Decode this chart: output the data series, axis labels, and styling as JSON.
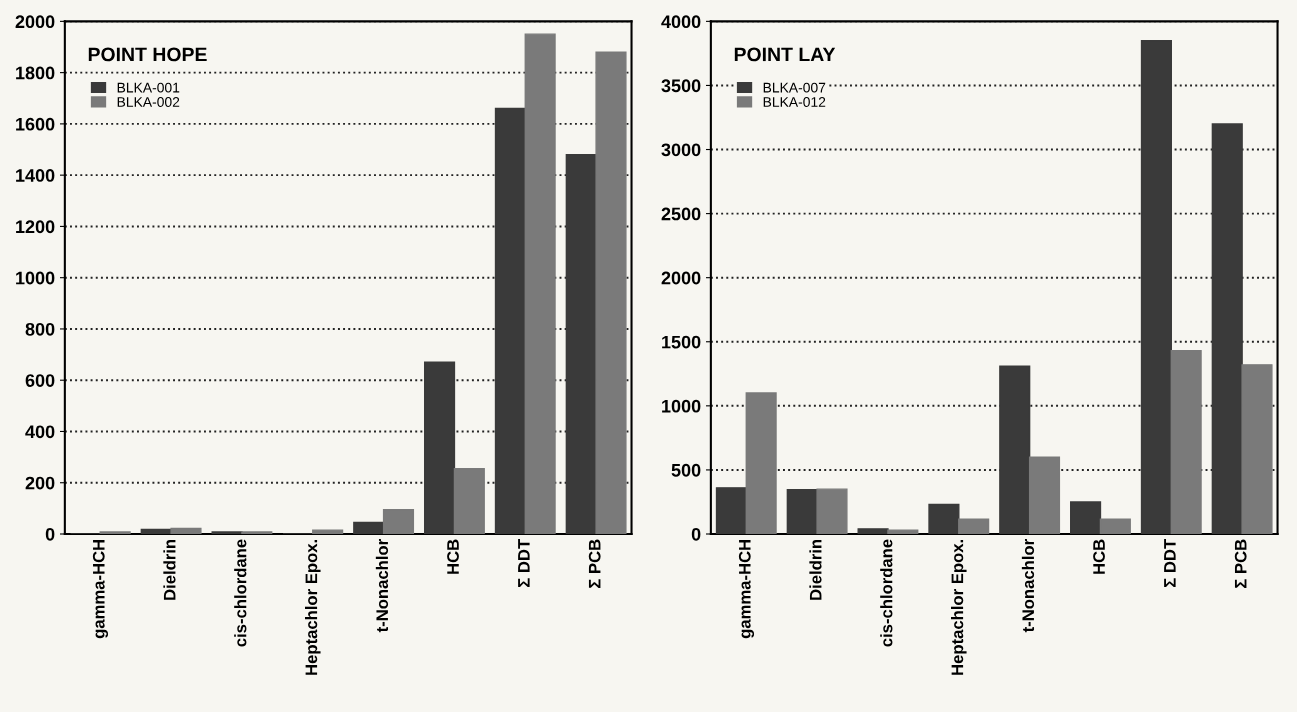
{
  "chart_data": [
    {
      "type": "bar",
      "title": "POINT HOPE",
      "categories": [
        "gamma-HCH",
        "Dieldrin",
        "cis-chlordane",
        "Heptachlor Epox.",
        "t-Nonachlor",
        "HCB",
        "Σ DDT",
        "Σ PCB"
      ],
      "series": [
        {
          "name": "BLKA-001",
          "color": "#3a3a3a",
          "values": [
            null,
            18,
            8,
            null,
            45,
            670,
            1660,
            1480
          ]
        },
        {
          "name": "BLKA-002",
          "color": "#7a7a7a",
          "values": [
            8,
            22,
            8,
            15,
            95,
            255,
            1950,
            1880
          ]
        }
      ],
      "ylim": [
        0,
        2000
      ],
      "yticks": [
        0,
        200,
        400,
        600,
        800,
        1000,
        1200,
        1400,
        1600,
        1800,
        2000
      ],
      "grid": "y",
      "legend": "top left"
    },
    {
      "type": "bar",
      "title": "POINT LAY",
      "categories": [
        "gamma-HCH",
        "Dieldrin",
        "cis-chlordane",
        "Heptachlor Epox.",
        "t-Nonachlor",
        "HCB",
        "Σ DDT",
        "Σ PCB"
      ],
      "series": [
        {
          "name": "BLKA-007",
          "color": "#3a3a3a",
          "values": [
            360,
            345,
            40,
            230,
            1310,
            250,
            3850,
            3200
          ]
        },
        {
          "name": "BLKA-012",
          "color": "#7a7a7a",
          "values": [
            1100,
            350,
            30,
            115,
            600,
            115,
            1430,
            1320
          ]
        }
      ],
      "ylim": [
        0,
        4000
      ],
      "yticks": [
        0,
        500,
        1000,
        1500,
        2000,
        2500,
        3000,
        3500,
        4000
      ],
      "grid": "y",
      "legend": "top left"
    }
  ]
}
